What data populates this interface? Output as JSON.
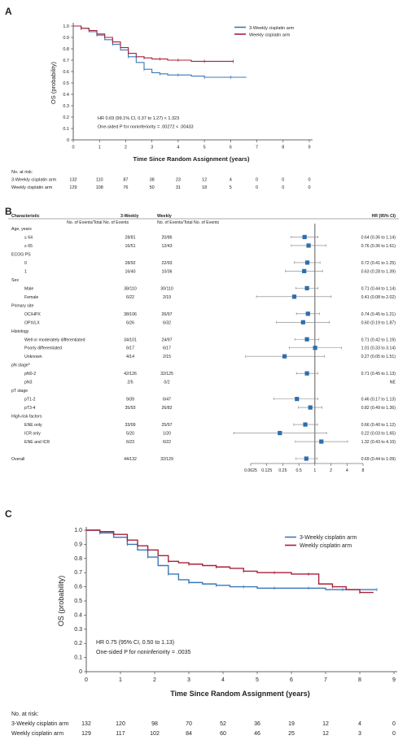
{
  "panels": {
    "A": "A",
    "B": "B",
    "C": "C"
  },
  "colors": {
    "three_weekly": "#3a78b8",
    "weekly": "#a8203a",
    "marker": "#2c6fae",
    "axis": "#333333"
  },
  "chart_data": [
    {
      "id": "A",
      "type": "line",
      "subtype": "kaplan-meier",
      "ylabel": "OS (probability)",
      "xlabel": "Time Since Random Assignment (years)",
      "xlim": [
        0,
        9
      ],
      "ylim": [
        0,
        1.0
      ],
      "xticks": [
        0,
        1,
        2,
        3,
        4,
        5,
        6,
        7,
        8,
        9
      ],
      "yticks": [
        "0",
        "0.1",
        "0.2",
        "0.3",
        "0.4",
        "0.5",
        "0.6",
        "0.7",
        "0.8",
        "0.9",
        "1.0"
      ],
      "legend": [
        "3-Weekly cisplatin arm",
        "Weekly cisplatin arm"
      ],
      "legend_position": "top-right",
      "annotation": [
        "HR 0.69 (99.1% CI, 0.37 to 1.27) < 1.323",
        "One-sided P for noninferiority = .00272 < .00433"
      ],
      "series": [
        {
          "name": "3-Weekly cisplatin arm",
          "x": [
            0,
            0.3,
            0.6,
            0.9,
            1.2,
            1.5,
            1.8,
            2.1,
            2.4,
            2.7,
            3.0,
            3.3,
            3.6,
            4.0,
            4.5,
            5.0,
            5.6,
            6.0,
            6.6
          ],
          "y": [
            1.0,
            0.98,
            0.95,
            0.92,
            0.88,
            0.84,
            0.79,
            0.73,
            0.68,
            0.62,
            0.59,
            0.58,
            0.57,
            0.57,
            0.56,
            0.55,
            0.55,
            0.55,
            0.55
          ]
        },
        {
          "name": "Weekly cisplatin arm",
          "x": [
            0,
            0.3,
            0.6,
            0.9,
            1.2,
            1.5,
            1.8,
            2.1,
            2.4,
            2.7,
            3.0,
            3.3,
            3.6,
            4.0,
            4.5,
            5.0,
            5.6,
            6.1
          ],
          "y": [
            1.0,
            0.98,
            0.96,
            0.93,
            0.9,
            0.86,
            0.81,
            0.76,
            0.73,
            0.72,
            0.71,
            0.71,
            0.7,
            0.7,
            0.69,
            0.69,
            0.69,
            0.69
          ]
        }
      ],
      "at_risk_title": "No. at risk:",
      "at_risk": [
        {
          "label": "3-Weekly cisplatin arm",
          "values": [
            "132",
            "110",
            "87",
            "38",
            "23",
            "12",
            "4",
            "0",
            "0",
            "0"
          ]
        },
        {
          "label": "Weekly cisplatin arm",
          "values": [
            "129",
            "108",
            "76",
            "50",
            "31",
            "18",
            "5",
            "0",
            "0",
            "0"
          ]
        }
      ]
    },
    {
      "id": "B",
      "type": "forest",
      "headers": {
        "characteristic": "Characteristic",
        "three_weekly": "3-Weekly",
        "weekly": "Weekly",
        "hr": "HR (95% CI)",
        "events_left": "No. of Events/Total No. of Events",
        "events_right": "No. of Events/Total No. of Events"
      },
      "xscale": "log2",
      "xticks": [
        "0.0625",
        "0.125",
        "0.25",
        "0.5",
        "1",
        "2",
        "4",
        "8"
      ],
      "reference_line": 1,
      "rows": [
        {
          "label": "Age, years",
          "header": true
        },
        {
          "label": "≤ 64",
          "tw": "28/81",
          "w": "20/86",
          "hr": 0.64,
          "lo": 0.36,
          "hi": 1.14,
          "text": "0.64 (0.36 to 1.14)"
        },
        {
          "label": "≥ 65",
          "tw": "16/51",
          "w": "12/43",
          "hr": 0.76,
          "lo": 0.36,
          "hi": 1.61,
          "text": "0.76 (0.36 to 1.61)"
        },
        {
          "label": "ECOG PS",
          "header": true
        },
        {
          "label": "0",
          "tw": "28/92",
          "w": "22/93",
          "hr": 0.72,
          "lo": 0.41,
          "hi": 1.25,
          "text": "0.72 (0.41 to 1.25)"
        },
        {
          "label": "1",
          "tw": "16/40",
          "w": "10/36",
          "hr": 0.63,
          "lo": 0.28,
          "hi": 1.39,
          "text": "0.63 (0.28 to 1.39)"
        },
        {
          "label": "Sex",
          "header": true
        },
        {
          "label": "Male",
          "tw": "38/110",
          "w": "30/110",
          "hr": 0.71,
          "lo": 0.44,
          "hi": 1.14,
          "text": "0.71 (0.44 to 1.14)"
        },
        {
          "label": "Female",
          "tw": "6/22",
          "w": "2/19",
          "hr": 0.41,
          "lo": 0.08,
          "hi": 2.02,
          "text": "0.41 (0.08 to 2.02)"
        },
        {
          "label": "Primary site",
          "header": true
        },
        {
          "label": "OC/HPX",
          "tw": "38/106",
          "w": "26/97",
          "hr": 0.74,
          "lo": 0.45,
          "hi": 1.21,
          "text": "0.74 (0.45 to 1.21)"
        },
        {
          "label": "OPX/LX",
          "tw": "6/26",
          "w": "6/32",
          "hr": 0.6,
          "lo": 0.19,
          "hi": 1.87,
          "text": "0.60 (0.19 to 1.87)"
        },
        {
          "label": "Histology",
          "header": true
        },
        {
          "label": "Well or moderately differentiated",
          "tw": "34/101",
          "w": "24/97",
          "hr": 0.71,
          "lo": 0.42,
          "hi": 1.19,
          "text": "0.71 (0.42 to 1.19)"
        },
        {
          "label": "Poorly differentiated",
          "tw": "6/17",
          "w": "6/17",
          "hr": 1.01,
          "lo": 0.33,
          "hi": 3.14,
          "text": "1.01 (0.33 to 3.14)"
        },
        {
          "label": "Unknown",
          "tw": "4/14",
          "w": "2/15",
          "hr": 0.27,
          "lo": 0.05,
          "hi": 1.51,
          "text": "0.27 (0.05 to 1.51)"
        },
        {
          "label": "pN stage",
          "sup": "a",
          "header": true
        },
        {
          "label": "pN0-2",
          "tw": "42/126",
          "w": "32/125",
          "hr": 0.71,
          "lo": 0.45,
          "hi": 1.13,
          "text": "0.71 (0.45 to 1.13)"
        },
        {
          "label": "pN3",
          "tw": "2/5",
          "w": "0/2",
          "text": "NE"
        },
        {
          "label": "pT stage",
          "header": true
        },
        {
          "label": "pT1-2",
          "tw": "9/39",
          "w": "6/47",
          "hr": 0.46,
          "lo": 0.17,
          "hi": 1.13,
          "text": "0.46 (0.17 to 1.13)"
        },
        {
          "label": "pT3-4",
          "tw": "35/93",
          "w": "26/82",
          "hr": 0.82,
          "lo": 0.49,
          "hi": 1.36,
          "text": "0.82 (0.49 to 1.36)"
        },
        {
          "label": "High-risk factors",
          "header": true
        },
        {
          "label": "ENE only",
          "tw": "33/99",
          "w": "25/97",
          "hr": 0.66,
          "lo": 0.4,
          "hi": 1.12,
          "text": "0.66 (0.40 to 1.12)"
        },
        {
          "label": "ICR only",
          "tw": "5/20",
          "w": "1/20",
          "hr": 0.22,
          "lo": 0.03,
          "hi": 1.65,
          "text": "0.22 (0.03 to 1.65)"
        },
        {
          "label": "ENE and ICR",
          "tw": "6/23",
          "w": "6/22",
          "hr": 1.32,
          "lo": 0.43,
          "hi": 4.1,
          "text": "1.32 (0.43 to 4.10)"
        },
        {
          "label": "",
          "spacer": true
        },
        {
          "label": "Overall",
          "tw": "44/132",
          "w": "32/129",
          "hr": 0.69,
          "lo": 0.44,
          "hi": 1.09,
          "text": "0.69 (0.44 to 1.09)"
        }
      ]
    },
    {
      "id": "C",
      "type": "line",
      "subtype": "kaplan-meier",
      "ylabel": "OS (probability)",
      "xlabel": "Time Since Random Assignment (years)",
      "xlim": [
        0,
        9
      ],
      "ylim": [
        0,
        1.0
      ],
      "xticks": [
        0,
        1,
        2,
        3,
        4,
        5,
        6,
        7,
        8,
        9
      ],
      "yticks": [
        "0",
        "0.1",
        "0.2",
        "0.3",
        "0.4",
        "0.5",
        "0.6",
        "0.7",
        "0.8",
        "0.9",
        "1.0"
      ],
      "legend": [
        "3-Weekly cisplatin arm",
        "Weekly cisplatin arm"
      ],
      "legend_position": "top-right",
      "annotation": [
        "HR 0.75 (95% CI, 0.50 to 1.13)",
        "One-sided P for noninferiority = .0035"
      ],
      "series": [
        {
          "name": "3-Weekly cisplatin arm",
          "x": [
            0,
            0.4,
            0.8,
            1.2,
            1.5,
            1.8,
            2.1,
            2.4,
            2.7,
            3.0,
            3.4,
            3.8,
            4.2,
            4.6,
            5.0,
            5.5,
            6.0,
            6.5,
            7.0,
            7.5,
            8.0,
            8.5
          ],
          "y": [
            1.0,
            0.98,
            0.95,
            0.9,
            0.86,
            0.81,
            0.75,
            0.69,
            0.65,
            0.63,
            0.62,
            0.61,
            0.6,
            0.6,
            0.59,
            0.59,
            0.59,
            0.59,
            0.58,
            0.58,
            0.58,
            0.58
          ]
        },
        {
          "name": "Weekly cisplatin arm",
          "x": [
            0,
            0.4,
            0.8,
            1.2,
            1.5,
            1.8,
            2.1,
            2.4,
            2.7,
            3.0,
            3.4,
            3.8,
            4.2,
            4.6,
            5.0,
            5.5,
            6.0,
            6.5,
            6.8,
            7.2,
            7.6,
            8.0,
            8.4
          ],
          "y": [
            1.0,
            0.99,
            0.97,
            0.93,
            0.89,
            0.86,
            0.82,
            0.78,
            0.77,
            0.76,
            0.75,
            0.74,
            0.73,
            0.71,
            0.7,
            0.7,
            0.69,
            0.69,
            0.62,
            0.6,
            0.58,
            0.56,
            0.56
          ]
        }
      ],
      "at_risk_title": "No. at risk:",
      "at_risk": [
        {
          "label": "3-Weekly cisplatin arm",
          "values": [
            "132",
            "120",
            "98",
            "70",
            "52",
            "36",
            "19",
            "12",
            "4",
            "0"
          ]
        },
        {
          "label": "Weekly cisplatin arm",
          "values": [
            "129",
            "117",
            "102",
            "84",
            "60",
            "46",
            "25",
            "12",
            "3",
            "0"
          ]
        }
      ]
    }
  ]
}
